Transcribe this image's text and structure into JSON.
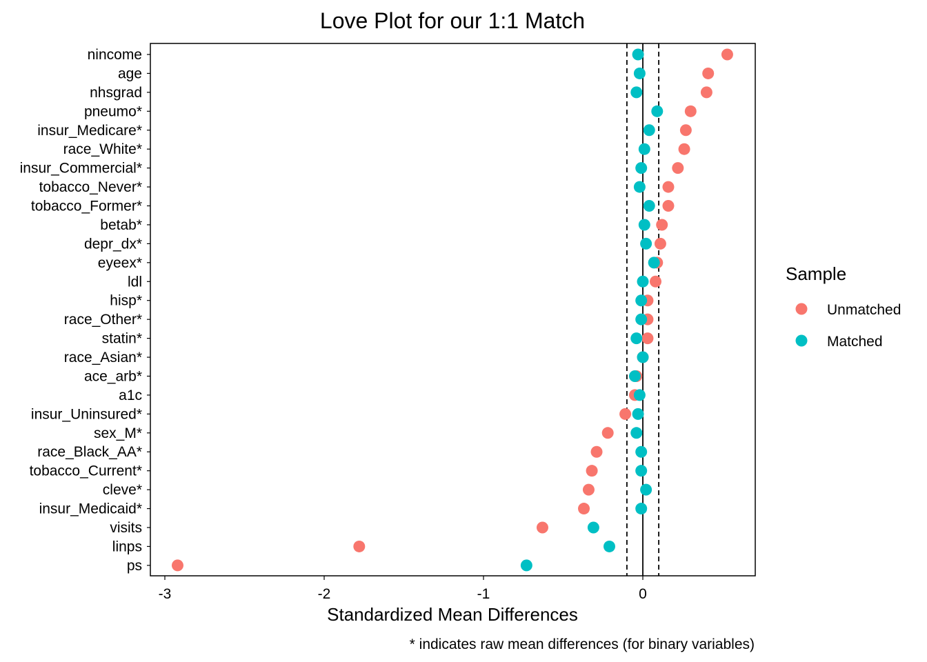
{
  "chart_data": {
    "type": "scatter",
    "title": "Love Plot for our 1:1 Match",
    "xlabel": "Standardized Mean Differences",
    "caption": "* indicates raw mean differences (for binary variables)",
    "xlim": [
      -3.1,
      0.7
    ],
    "xticks": [
      "-3",
      "-2",
      "-1",
      "0"
    ],
    "threshold_lines": [
      -0.1,
      0.1
    ],
    "zero_line": 0,
    "legend": {
      "title": "Sample",
      "position": "right"
    },
    "categories": [
      "nincome",
      "age",
      "nhsgrad",
      "pneumo*",
      "insur_Medicare*",
      "race_White*",
      "insur_Commercial*",
      "tobacco_Never*",
      "tobacco_Former*",
      "betab*",
      "depr_dx*",
      "eyeex*",
      "ldl",
      "hisp*",
      "race_Other*",
      "statin*",
      "race_Asian*",
      "ace_arb*",
      "a1c",
      "insur_Uninsured*",
      "sex_M*",
      "race_Black_AA*",
      "tobacco_Current*",
      "cleve*",
      "insur_Medicaid*",
      "visits",
      "linps",
      "ps"
    ],
    "series": [
      {
        "name": "Unmatched",
        "color": "#F8766D",
        "values": [
          0.53,
          0.41,
          0.4,
          0.3,
          0.27,
          0.26,
          0.22,
          0.16,
          0.16,
          0.12,
          0.11,
          0.09,
          0.08,
          0.03,
          0.03,
          0.03,
          0.0,
          -0.04,
          -0.05,
          -0.11,
          -0.22,
          -0.29,
          -0.32,
          -0.34,
          -0.37,
          -0.63,
          -1.78,
          -2.92
        ]
      },
      {
        "name": "Matched",
        "color": "#00BFC4",
        "values": [
          -0.03,
          -0.02,
          -0.04,
          0.09,
          0.04,
          0.01,
          -0.01,
          -0.02,
          0.04,
          0.01,
          0.02,
          0.07,
          0.0,
          -0.01,
          -0.01,
          -0.04,
          0.0,
          -0.05,
          -0.02,
          -0.03,
          -0.04,
          -0.01,
          -0.01,
          0.02,
          -0.01,
          -0.31,
          -0.21,
          -0.73
        ]
      }
    ]
  }
}
